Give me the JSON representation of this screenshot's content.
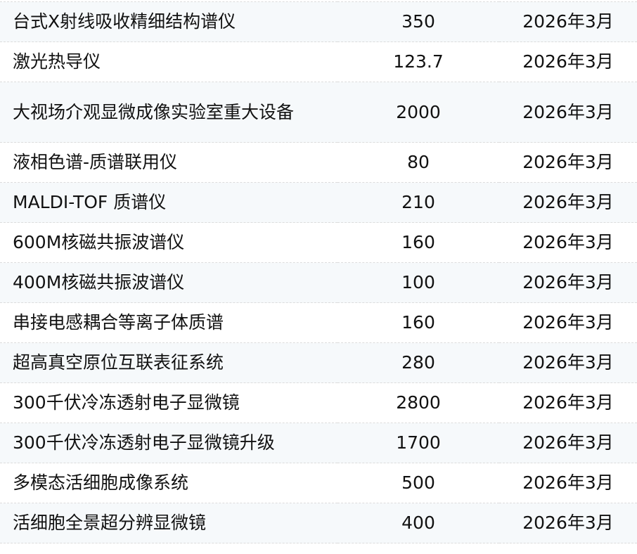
{
  "table": {
    "rows": [
      {
        "name": "台式X射线吸收精细结构谱仪",
        "amount": "350",
        "date": "2026年3月"
      },
      {
        "name": "激光热导仪",
        "amount": "123.7",
        "date": "2026年3月"
      },
      {
        "name": "大视场介观显微成像实验室重大设备",
        "amount": "2000",
        "date": "2026年3月"
      },
      {
        "name": "液相色谱-质谱联用仪",
        "amount": "80",
        "date": "2026年3月"
      },
      {
        "name": "MALDI-TOF 质谱仪",
        "amount": "210",
        "date": "2026年3月"
      },
      {
        "name": "600M核磁共振波谱仪",
        "amount": "160",
        "date": "2026年3月"
      },
      {
        "name": "400M核磁共振波谱仪",
        "amount": "100",
        "date": "2026年3月"
      },
      {
        "name": "串接电感耦合等离子体质谱",
        "amount": "160",
        "date": "2026年3月"
      },
      {
        "name": "超高真空原位互联表征系统",
        "amount": "280",
        "date": "2026年3月"
      },
      {
        "name": "300千伏冷冻透射电子显微镜",
        "amount": "2800",
        "date": "2026年3月"
      },
      {
        "name": "300千伏冷冻透射电子显微镜升级",
        "amount": "1700",
        "date": "2026年3月"
      },
      {
        "name": "多模态活细胞成像系统",
        "amount": "500",
        "date": "2026年3月"
      },
      {
        "name": "活细胞全景超分辨显微镜",
        "amount": "400",
        "date": "2026年3月"
      }
    ]
  },
  "colors": {
    "row_alt": "#f6f9fb",
    "border": "#dcdcdc",
    "text": "#111111"
  }
}
